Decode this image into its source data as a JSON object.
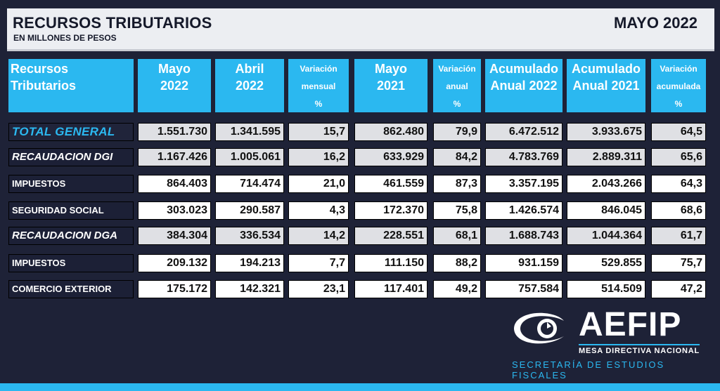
{
  "header": {
    "title": "RECURSOS TRIBUTARIOS",
    "subtitle": "EN MILLONES DE PESOS",
    "period": "MAYO 2022"
  },
  "columns": [
    {
      "line1": "Recursos",
      "line2": "Tributarios"
    },
    {
      "line1": "Mayo",
      "line2": "2022"
    },
    {
      "line1": "Abril",
      "line2": "2022"
    },
    {
      "line1": "Variación",
      "line2": "mensual",
      "line3": "%"
    },
    {
      "line1": "Mayo",
      "line2": "2021"
    },
    {
      "line1": "Variación",
      "line2": "anual",
      "line3": "%"
    },
    {
      "line1": "Acumulado",
      "line2": "Anual 2022"
    },
    {
      "line1": "Acumulado",
      "line2": "Anual 2021"
    },
    {
      "line1": "Variación",
      "line2": "acumulada",
      "line3": "%"
    }
  ],
  "rows": [
    {
      "label": "TOTAL GENERAL",
      "values": [
        "1.551.730",
        "1.341.595",
        "15,7",
        "862.480",
        "79,9",
        "6.472.512",
        "3.933.675",
        "64,5"
      ]
    },
    {
      "label": "RECAUDACION DGI",
      "values": [
        "1.167.426",
        "1.005.061",
        "16,2",
        "633.929",
        "84,2",
        "4.783.769",
        "2.889.311",
        "65,6"
      ]
    },
    {
      "label": "IMPUESTOS",
      "values": [
        "864.403",
        "714.474",
        "21,0",
        "461.559",
        "87,3",
        "3.357.195",
        "2.043.266",
        "64,3"
      ]
    },
    {
      "label": "SEGURIDAD SOCIAL",
      "values": [
        "303.023",
        "290.587",
        "4,3",
        "172.370",
        "75,8",
        "1.426.574",
        "846.045",
        "68,6"
      ]
    },
    {
      "label": "RECAUDACION DGA",
      "values": [
        "384.304",
        "336.534",
        "14,2",
        "228.551",
        "68,1",
        "1.688.743",
        "1.044.364",
        "61,7"
      ]
    },
    {
      "label": "IMPUESTOS",
      "values": [
        "209.132",
        "194.213",
        "7,7",
        "111.150",
        "88,2",
        "931.159",
        "529.855",
        "75,7"
      ]
    },
    {
      "label": "COMERCIO EXTERIOR",
      "values": [
        "175.172",
        "142.321",
        "23,1",
        "117.401",
        "49,2",
        "757.584",
        "514.509",
        "47,2"
      ]
    }
  ],
  "logo": {
    "name": "AEFIP",
    "subtitle": "MESA DIRECTIVA NACIONAL",
    "department": "SECRETARÍA DE ESTUDIOS FISCALES"
  },
  "colors": {
    "background": "#1e2237",
    "accent": "#2bb8f0",
    "header_bg": "#eceef2"
  }
}
